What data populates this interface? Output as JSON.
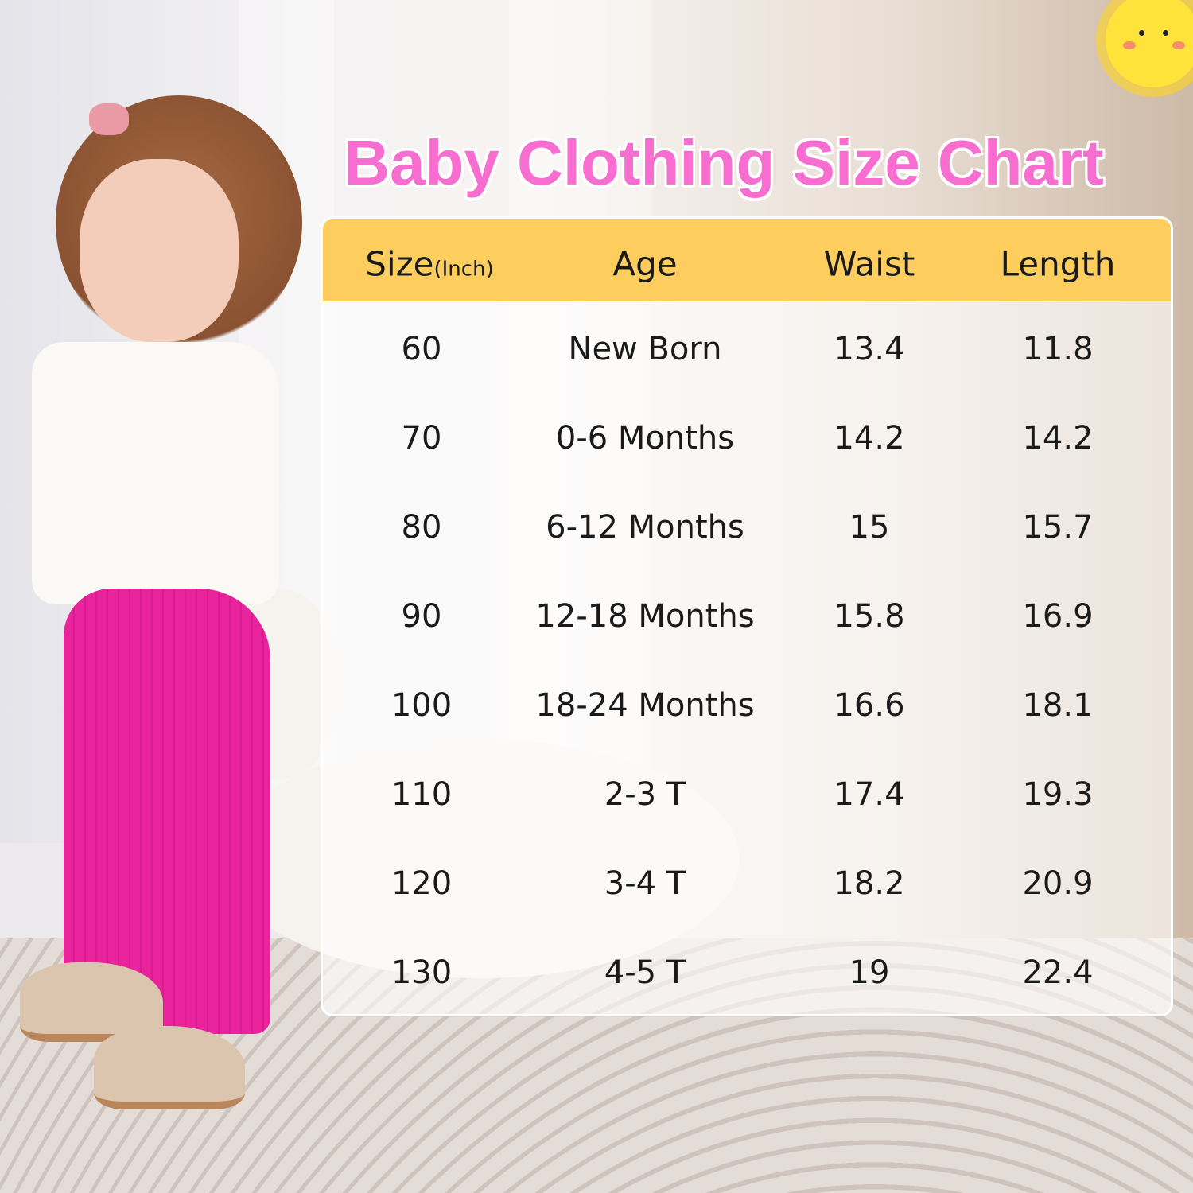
{
  "title": "Baby Clothing Size Chart",
  "colors": {
    "title": "#f86ed0",
    "header_bg": "#fdcd5e",
    "leggings": "#e8239b"
  },
  "table": {
    "headers": [
      {
        "label": "Size",
        "unit": "(Inch)"
      },
      {
        "label": "Age"
      },
      {
        "label": "Waist"
      },
      {
        "label": "Length"
      }
    ],
    "rows": [
      [
        "60",
        "New Born",
        "13.4",
        "11.8"
      ],
      [
        "70",
        "0-6 Months",
        "14.2",
        "14.2"
      ],
      [
        "80",
        "6-12 Months",
        "15",
        "15.7"
      ],
      [
        "90",
        "12-18 Months",
        "15.8",
        "16.9"
      ],
      [
        "100",
        "18-24 Months",
        "16.6",
        "18.1"
      ],
      [
        "110",
        "2-3 T",
        "17.4",
        "19.3"
      ],
      [
        "120",
        "3-4 T",
        "18.2",
        "20.9"
      ],
      [
        "130",
        "4-5 T",
        "19",
        "22.4"
      ]
    ]
  }
}
